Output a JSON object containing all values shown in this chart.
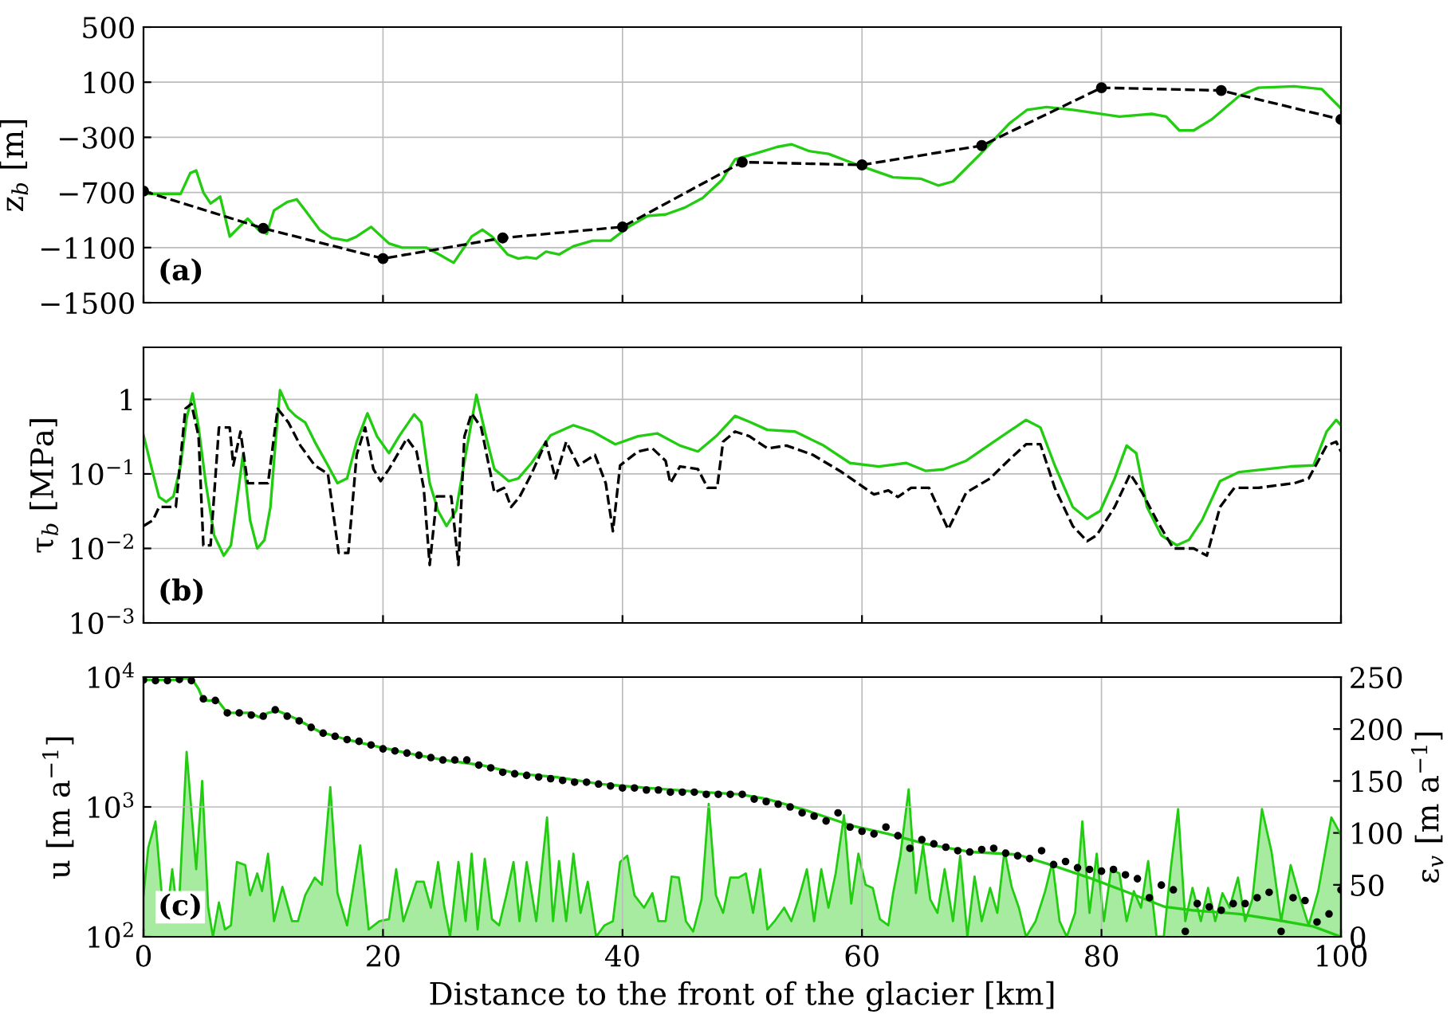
{
  "chart_data": [
    {
      "type": "line",
      "ylabel": "z$_{b}$ [m]",
      "annotations": [
        "(a)"
      ],
      "xlim": [
        0,
        100
      ],
      "xticks": [
        0,
        20,
        40,
        60,
        80,
        100
      ],
      "ylim": [
        -1500,
        500
      ],
      "yticks": [
        {
          "value": -1500,
          "label": "−1500"
        },
        {
          "value": -1100,
          "label": "−1100"
        },
        {
          "value": -700,
          "label": "−700"
        },
        {
          "value": -300,
          "label": "−300"
        },
        100,
        500
      ],
      "grid": true,
      "tick_labels": "y",
      "series": [
        {
          "type": "line",
          "color": "#22cc11",
          "line_style": "solid",
          "marker": "none",
          "x": [
            0,
            3.1,
            3.9,
            4.4,
            5.0,
            5.6,
            6.4,
            7.2,
            8.0,
            8.7,
            9.7,
            10.3,
            10.9,
            12.0,
            12.8,
            13.5,
            14.7,
            15.7,
            17,
            17.8,
            19,
            20.5,
            21.6,
            23.6,
            24.7,
            25.9,
            27.4,
            28.3,
            29.1,
            30.4,
            31.3,
            32,
            32.8,
            33.6,
            34.7,
            35.9,
            37.5,
            39,
            40.5,
            42.1,
            43.6,
            45.2,
            46.7,
            48.3,
            49.4,
            51.4,
            52.9,
            54.1,
            55.6,
            57.2,
            58.7,
            60.6,
            62.6,
            64.9,
            66.4,
            67.6,
            69.9,
            72.3,
            73.8,
            75.4,
            77.6,
            81.5,
            84.2,
            85.4,
            86.5,
            87.7,
            89.2,
            91.5,
            93.1,
            96.1,
            98.4,
            100
          ],
          "values": [
            -710,
            -710,
            -560,
            -540,
            -700,
            -780,
            -730,
            -1020,
            -950,
            -890,
            -980,
            -1000,
            -830,
            -770,
            -750,
            -830,
            -970,
            -1030,
            -1050,
            -1020,
            -950,
            -1070,
            -1100,
            -1100,
            -1150,
            -1210,
            -1020,
            -970,
            -1020,
            -1150,
            -1180,
            -1170,
            -1180,
            -1130,
            -1150,
            -1090,
            -1050,
            -1050,
            -950,
            -870,
            -860,
            -810,
            -740,
            -610,
            -460,
            -410,
            -370,
            -350,
            -400,
            -420,
            -470,
            -530,
            -590,
            -600,
            -650,
            -620,
            -420,
            -200,
            -100,
            -80,
            -100,
            -150,
            -130,
            -150,
            -250,
            -250,
            -170,
            0,
            60,
            70,
            50,
            -90
          ]
        },
        {
          "type": "line",
          "color": "#000000",
          "line_style": "dashed",
          "marker": "circle",
          "x": [
            0,
            10,
            20,
            30,
            40,
            50,
            60,
            70,
            80,
            90,
            100
          ],
          "values": [
            -690,
            -960,
            -1180,
            -1030,
            -950,
            -480,
            -500,
            -360,
            60,
            40,
            -170
          ]
        }
      ]
    },
    {
      "type": "line",
      "ylabel": "τ$_{b}$ [MPa]",
      "annotations": [
        "(b)"
      ],
      "log": "y",
      "xlim": [
        0,
        100
      ],
      "xticks": [
        0,
        20,
        40,
        60,
        80,
        100
      ],
      "ylim": [
        0.001,
        5
      ],
      "yticks": [
        {
          "value": 0.001,
          "label": "10$^{−3}$"
        },
        {
          "value": 0.01,
          "label": "10$^{−2}$"
        },
        {
          "value": 0.1,
          "label": "10$^{−1}$"
        },
        1
      ],
      "grid": true,
      "tick_labels": "y",
      "series": [
        {
          "type": "line",
          "color": "#22cc11",
          "line_style": "solid",
          "marker": "none",
          "x": [
            0,
            0.8,
            1.3,
            1.9,
            2.5,
            3.1,
            3.6,
            4.1,
            4.6,
            5.2,
            5.9,
            6.7,
            7.3,
            8.0,
            8.3,
            8.9,
            9.5,
            10.1,
            10.6,
            11.0,
            11.4,
            12.1,
            12.7,
            13.5,
            14.3,
            15.4,
            16.2,
            17,
            17.8,
            18.7,
            19.5,
            20.5,
            21.4,
            22.6,
            23.2,
            23.9,
            24.6,
            25.3,
            26.1,
            26.9,
            27.8,
            28.6,
            29.3,
            30.5,
            31.3,
            32.4,
            34,
            35.9,
            37.5,
            39.4,
            41.3,
            42.9,
            44.8,
            46.3,
            47.9,
            49.4,
            50.6,
            52.1,
            54.4,
            56.8,
            59,
            61.4,
            63.7,
            65.3,
            66.8,
            68.7,
            71,
            73.7,
            74.9,
            76.1,
            77.6,
            78.8,
            79.9,
            81.1,
            82.1,
            82.9,
            83.8,
            85,
            86.3,
            87.3,
            88.4,
            89.9,
            91.5,
            93.8,
            95.8,
            97.7,
            98.8,
            99.6,
            100
          ],
          "values": [
            0.33,
            0.1,
            0.049,
            0.042,
            0.05,
            0.13,
            0.56,
            1.2,
            0.42,
            0.075,
            0.015,
            0.008,
            0.011,
            0.075,
            0.18,
            0.024,
            0.01,
            0.013,
            0.036,
            0.24,
            1.33,
            0.75,
            0.6,
            0.49,
            0.27,
            0.13,
            0.075,
            0.087,
            0.27,
            0.65,
            0.32,
            0.19,
            0.33,
            0.63,
            0.49,
            0.075,
            0.032,
            0.02,
            0.032,
            0.18,
            1.15,
            0.32,
            0.116,
            0.08,
            0.087,
            0.14,
            0.33,
            0.45,
            0.37,
            0.25,
            0.32,
            0.35,
            0.24,
            0.2,
            0.33,
            0.6,
            0.5,
            0.39,
            0.37,
            0.24,
            0.14,
            0.126,
            0.14,
            0.11,
            0.115,
            0.15,
            0.27,
            0.53,
            0.42,
            0.13,
            0.036,
            0.025,
            0.032,
            0.087,
            0.24,
            0.19,
            0.036,
            0.015,
            0.011,
            0.013,
            0.024,
            0.08,
            0.106,
            0.116,
            0.126,
            0.13,
            0.37,
            0.53,
            0.45
          ]
        },
        {
          "type": "line",
          "color": "#000000",
          "line_style": "dashed",
          "marker": "none",
          "x": [
            0,
            0.8,
            1.3,
            2.7,
            3.5,
            4.0,
            4.6,
            5.0,
            5.6,
            6.3,
            7.2,
            7.5,
            8.1,
            8.7,
            10.4,
            11.2,
            12.1,
            13.1,
            14.3,
            15.4,
            16.3,
            17.1,
            17.8,
            18.5,
            19.2,
            19.8,
            20.5,
            22,
            22.8,
            23.4,
            23.9,
            24.5,
            25.7,
            26.3,
            26.8,
            27.4,
            28.2,
            29.3,
            30.1,
            30.7,
            31.4,
            32.4,
            33.6,
            34.4,
            35.3,
            36.3,
            37.7,
            38.6,
            39.2,
            39.8,
            41.3,
            42.5,
            43.6,
            44,
            44.8,
            46.3,
            47.1,
            47.9,
            48.4,
            49.4,
            50.6,
            52.1,
            53.7,
            55.9,
            58.3,
            60.2,
            61,
            62.2,
            63,
            64.1,
            65.6,
            67.2,
            68.7,
            70.7,
            72.2,
            73.7,
            74.9,
            76.1,
            77.6,
            78.8,
            79.6,
            81.1,
            82.4,
            83.4,
            84.6,
            86,
            87.7,
            88.8,
            89.9,
            91.1,
            93.1,
            94.6,
            96.1,
            97.3,
            98.8,
            99.6,
            100
          ],
          "values": [
            0.02,
            0.024,
            0.036,
            0.036,
            0.75,
            0.87,
            0.32,
            0.011,
            0.011,
            0.42,
            0.42,
            0.13,
            0.37,
            0.075,
            0.075,
            0.75,
            0.49,
            0.24,
            0.13,
            0.1,
            0.0087,
            0.0087,
            0.18,
            0.42,
            0.116,
            0.08,
            0.116,
            0.3,
            0.2,
            0.065,
            0.006,
            0.05,
            0.05,
            0.006,
            0.32,
            0.65,
            0.42,
            0.056,
            0.065,
            0.036,
            0.049,
            0.1,
            0.27,
            0.087,
            0.27,
            0.13,
            0.18,
            0.075,
            0.017,
            0.13,
            0.2,
            0.22,
            0.15,
            0.075,
            0.126,
            0.116,
            0.065,
            0.065,
            0.27,
            0.37,
            0.32,
            0.22,
            0.24,
            0.18,
            0.106,
            0.065,
            0.053,
            0.06,
            0.049,
            0.065,
            0.065,
            0.018,
            0.056,
            0.087,
            0.15,
            0.25,
            0.25,
            0.065,
            0.02,
            0.0125,
            0.015,
            0.036,
            0.1,
            0.056,
            0.024,
            0.01,
            0.01,
            0.008,
            0.036,
            0.065,
            0.065,
            0.07,
            0.075,
            0.087,
            0.24,
            0.27,
            0.2
          ]
        }
      ]
    },
    {
      "type": "line",
      "xlabel": "Distance to the front of the glacier [km]",
      "ylabel": "u [m a$^{−1}$]",
      "y2label": "ε$_{v}$ [m a$^{−1}$]",
      "annotations": [
        "(c)"
      ],
      "log": "y",
      "xlim": [
        0,
        100
      ],
      "xticks": [
        0,
        20,
        40,
        60,
        80,
        100
      ],
      "ylim": [
        100,
        10000
      ],
      "yticks": [
        {
          "value": 100,
          "label": "10$^{2}$"
        },
        {
          "value": 1000,
          "label": "10$^{3}$"
        },
        {
          "value": 10000,
          "label": "10$^{4}$"
        }
      ],
      "y2lim": [
        0,
        250
      ],
      "y2ticks": [
        0,
        50,
        100,
        150,
        200,
        250
      ],
      "grid": true,
      "series": [
        {
          "type": "area",
          "axis": "y2",
          "color": "#22cc11",
          "x": [
            0,
            0.4,
            1.0,
            1.5,
            1.9,
            2.4,
            2.9,
            3.6,
            4.4,
            4.9,
            5.4,
            5.8,
            6.3,
            6.8,
            7.3,
            7.8,
            8.5,
            8.9,
            9.5,
            9.9,
            10.4,
            10.9,
            11.6,
            12.4,
            12.9,
            13.5,
            14.3,
            14.9,
            15.6,
            16.2,
            17,
            17.8,
            18.1,
            18.8,
            19.7,
            20.5,
            21.1,
            21.7,
            22.8,
            23.4,
            24,
            24.6,
            25.1,
            25.6,
            26.3,
            26.9,
            27.4,
            27.9,
            28.5,
            29.1,
            29.7,
            30.3,
            30.9,
            31.4,
            32,
            32.8,
            33.7,
            34.2,
            34.7,
            35.3,
            35.9,
            36.5,
            37.1,
            37.8,
            38.5,
            39.2,
            39.8,
            40.4,
            41,
            41.8,
            42.5,
            43,
            43.6,
            44.1,
            44.7,
            45.3,
            45.9,
            46.6,
            47.2,
            47.8,
            48.4,
            49,
            49.7,
            50.3,
            50.9,
            51.5,
            52.1,
            52.7,
            53.5,
            54.1,
            54.7,
            55.4,
            56,
            56.6,
            57.2,
            57.8,
            58.5,
            59.1,
            59.7,
            60.3,
            60.9,
            61.5,
            62.2,
            62.6,
            63.2,
            63.9,
            64.5,
            65.1,
            65.7,
            66.3,
            66.9,
            67.6,
            68.2,
            68.8,
            69.4,
            70,
            70.7,
            71.3,
            71.9,
            72.5,
            73.1,
            73.7,
            74.5,
            75.3,
            75.9,
            76.5,
            77.1,
            77.8,
            78.4,
            79,
            79.6,
            80.2,
            80.8,
            81.5,
            82.1,
            82.7,
            83.3,
            83.9,
            84.6,
            85.2,
            85.8,
            86.4,
            87,
            87.6,
            88.3,
            88.9,
            89.5,
            90.1,
            90.7,
            91.4,
            92,
            92.6,
            93.4,
            94.2,
            95,
            95.8,
            96.5,
            97.3,
            98.1,
            99.2,
            100
          ],
          "values": [
            40,
            86,
            111,
            44,
            15,
            65,
            15,
            178,
            65,
            150,
            28,
            0,
            33,
            7,
            11,
            72,
            69,
            40,
            61,
            44,
            80,
            15,
            48,
            15,
            15,
            40,
            57,
            50,
            144,
            42,
            11,
            67,
            88,
            7,
            15,
            17,
            65,
            15,
            53,
            53,
            28,
            72,
            30,
            0,
            72,
            15,
            80,
            7,
            75,
            17,
            11,
            40,
            72,
            15,
            72,
            15,
            115,
            15,
            73,
            15,
            80,
            23,
            53,
            0,
            11,
            15,
            72,
            78,
            40,
            28,
            42,
            15,
            15,
            58,
            57,
            15,
            5,
            36,
            128,
            40,
            23,
            57,
            57,
            61,
            23,
            65,
            7,
            15,
            28,
            15,
            36,
            65,
            15,
            65,
            28,
            61,
            117,
            32,
            80,
            50,
            47,
            17,
            11,
            42,
            78,
            142,
            42,
            88,
            36,
            23,
            65,
            15,
            78,
            0,
            58,
            15,
            47,
            23,
            83,
            48,
            28,
            0,
            15,
            44,
            72,
            15,
            0,
            23,
            111,
            23,
            80,
            15,
            65,
            61,
            15,
            44,
            28,
            73,
            0,
            0,
            67,
            123,
            15,
            47,
            15,
            47,
            15,
            42,
            28,
            57,
            15,
            36,
            123,
            82,
            15,
            69,
            40,
            11,
            44,
            115,
            98
          ]
        },
        {
          "type": "line",
          "axis": "y",
          "color": "#22cc11",
          "line_style": "solid",
          "marker": "none",
          "x": [
            0,
            2.7,
            3.5,
            4.1,
            4.6,
            5,
            6.2,
            7,
            8.9,
            9.7,
            10.4,
            11.2,
            12.7,
            14.7,
            17,
            18.9,
            22,
            25.1,
            28.2,
            31.3,
            34.4,
            38.2,
            42.1,
            46.7,
            49.8,
            52.1,
            55.2,
            59.1,
            62.2,
            65.3,
            69.1,
            73,
            76.1,
            79.2,
            82.2,
            85.3,
            87.6,
            91.5,
            94.6,
            97.7,
            100
          ],
          "values": [
            9500,
            9500,
            9800,
            9500,
            8100,
            6600,
            6600,
            5300,
            5300,
            4900,
            5300,
            5500,
            4800,
            3800,
            3300,
            3000,
            2600,
            2300,
            2100,
            1800,
            1700,
            1500,
            1400,
            1300,
            1250,
            1150,
            950,
            720,
            620,
            520,
            450,
            430,
            350,
            280,
            220,
            170,
            160,
            150,
            135,
            120,
            100
          ]
        },
        {
          "type": "scatter",
          "axis": "y",
          "color": "#000000",
          "marker": "circle",
          "x": [
            0,
            1,
            2,
            3,
            4,
            5,
            6,
            7,
            8,
            9,
            10,
            11,
            12,
            13,
            14,
            15,
            16,
            17,
            18,
            19,
            20,
            21,
            22,
            23,
            24,
            25,
            26,
            27,
            28,
            29,
            30,
            31,
            32,
            33,
            34,
            35,
            36,
            37,
            38,
            39,
            40,
            41,
            42,
            43,
            44,
            45,
            46,
            47,
            48,
            49,
            50,
            51,
            52,
            53,
            54,
            55,
            56,
            57,
            58,
            59,
            60,
            61,
            62,
            63,
            64,
            65,
            66,
            67,
            68,
            69,
            70,
            71,
            72,
            73,
            74,
            75,
            76,
            77,
            78,
            79,
            80,
            81,
            82,
            83,
            84,
            85,
            86,
            87,
            88,
            89,
            90,
            91,
            92,
            93,
            94,
            95,
            96,
            97,
            98,
            99,
            100
          ],
          "values": [
            9500,
            9400,
            9400,
            9600,
            9400,
            6800,
            6600,
            5300,
            5300,
            5100,
            5000,
            5600,
            5000,
            4600,
            4100,
            3700,
            3500,
            3300,
            3200,
            3000,
            2800,
            2700,
            2600,
            2500,
            2400,
            2300,
            2300,
            2300,
            2100,
            2000,
            1850,
            1800,
            1750,
            1700,
            1650,
            1600,
            1550,
            1550,
            1500,
            1450,
            1400,
            1400,
            1350,
            1350,
            1300,
            1300,
            1300,
            1250,
            1250,
            1250,
            1250,
            1150,
            1100,
            1050,
            1000,
            900,
            850,
            780,
            900,
            700,
            650,
            620,
            700,
            600,
            480,
            560,
            520,
            490,
            460,
            450,
            470,
            480,
            440,
            420,
            400,
            460,
            360,
            380,
            340,
            330,
            320,
            330,
            300,
            280,
            200,
            250,
            230,
            110,
            180,
            170,
            160,
            180,
            180,
            200,
            220,
            110,
            200,
            190,
            130,
            150,
            230
          ]
        }
      ]
    }
  ]
}
